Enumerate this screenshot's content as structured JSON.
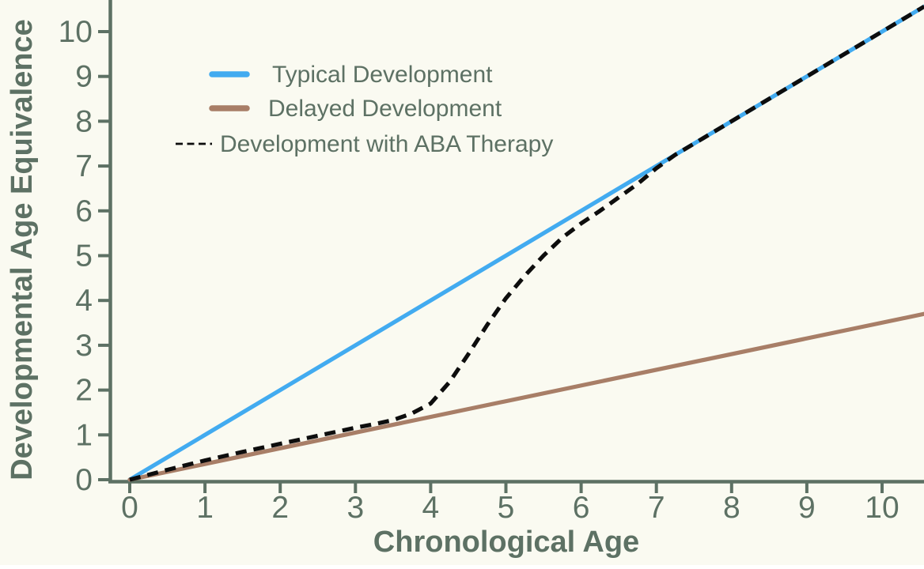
{
  "figure": {
    "background": "#FAFAF1",
    "axis_color": "#5d7164",
    "text_color": "#5d7164"
  },
  "chart_data": {
    "type": "line",
    "title": "",
    "xlabel": "Chronological Age",
    "ylabel": "Developmental Age Equivalence",
    "xlim": [
      0,
      10.56
    ],
    "ylim": [
      0,
      10.7
    ],
    "xticks": [
      "0",
      "1",
      "2",
      "3",
      "4",
      "5",
      "6",
      "7",
      "8",
      "9",
      "10"
    ],
    "yticks": [
      "0",
      "1",
      "2",
      "3",
      "4",
      "5",
      "6",
      "7",
      "8",
      "9",
      "10"
    ],
    "grid": false,
    "legend_position": "upper-left-inside",
    "legend_frame": false,
    "series": [
      {
        "name": "Typical Development",
        "color": "#42ABF0",
        "style": "solid",
        "x": [
          0,
          10.56
        ],
        "y": [
          0,
          10.56
        ]
      },
      {
        "name": "Delayed Development",
        "color": "#A87E67",
        "style": "solid",
        "x": [
          0,
          10.56
        ],
        "y": [
          0,
          3.7
        ]
      },
      {
        "name": "Development with ABA Therapy",
        "color": "#0d0d0d",
        "style": "dashed",
        "x": [
          0,
          0.5,
          1,
          1.5,
          2,
          2.5,
          3,
          3.25,
          3.5,
          3.75,
          4,
          4.25,
          4.5,
          4.75,
          5,
          5.25,
          5.5,
          5.75,
          6,
          6.25,
          6.5,
          6.75,
          7,
          7.25,
          7.5,
          8,
          8.5,
          9,
          9.5,
          10,
          10.56
        ],
        "y": [
          0,
          0.22,
          0.43,
          0.62,
          0.8,
          0.98,
          1.16,
          1.24,
          1.33,
          1.48,
          1.7,
          2.18,
          2.8,
          3.45,
          4.05,
          4.55,
          5.0,
          5.4,
          5.72,
          6.0,
          6.3,
          6.6,
          6.95,
          7.25,
          7.5,
          8.0,
          8.5,
          9.0,
          9.5,
          10.0,
          10.56
        ]
      }
    ]
  }
}
